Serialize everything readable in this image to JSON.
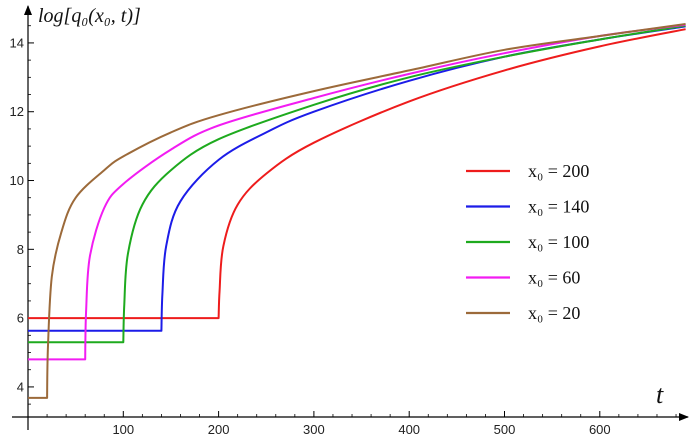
{
  "chart_data": {
    "type": "line",
    "ylabel": "log[q₀(x₀, t)]",
    "xlabel": "t",
    "xlim": [
      0,
      690
    ],
    "ylim": [
      3.3,
      14.6
    ],
    "x_ticks": [
      100,
      200,
      300,
      400,
      500,
      600
    ],
    "y_ticks": [
      4,
      6,
      8,
      10,
      12,
      14
    ],
    "grid": false,
    "legend_position": "right",
    "series": [
      {
        "name": "x₀ = 200",
        "x0": 200,
        "color": "#ee1c1c",
        "points": [
          [
            0,
            6.0
          ],
          [
            200,
            6.0
          ],
          [
            201,
            6.8
          ],
          [
            205,
            8.1
          ],
          [
            220,
            9.3
          ],
          [
            250,
            10.2
          ],
          [
            300,
            11.1
          ],
          [
            400,
            12.3
          ],
          [
            500,
            13.2
          ],
          [
            600,
            13.9
          ],
          [
            690,
            14.4
          ]
        ]
      },
      {
        "name": "x₀ = 140",
        "x0": 140,
        "color": "#1c1ce8",
        "points": [
          [
            0,
            5.63
          ],
          [
            140,
            5.63
          ],
          [
            141,
            6.7
          ],
          [
            145,
            8.1
          ],
          [
            160,
            9.4
          ],
          [
            200,
            10.6
          ],
          [
            250,
            11.4
          ],
          [
            300,
            12.0
          ],
          [
            400,
            12.9
          ],
          [
            500,
            13.6
          ],
          [
            600,
            14.1
          ],
          [
            690,
            14.48
          ]
        ]
      },
      {
        "name": "x₀ = 100",
        "x0": 100,
        "color": "#1eaa1e",
        "points": [
          [
            0,
            5.3
          ],
          [
            100,
            5.3
          ],
          [
            101,
            6.4
          ],
          [
            105,
            7.9
          ],
          [
            120,
            9.3
          ],
          [
            150,
            10.3
          ],
          [
            200,
            11.2
          ],
          [
            300,
            12.2
          ],
          [
            400,
            13.0
          ],
          [
            500,
            13.6
          ],
          [
            600,
            14.1
          ],
          [
            690,
            14.5
          ]
        ]
      },
      {
        "name": "x₀ = 60",
        "x0": 60,
        "color": "#f21cf2",
        "points": [
          [
            0,
            4.8
          ],
          [
            60,
            4.8
          ],
          [
            61,
            6.2
          ],
          [
            65,
            7.8
          ],
          [
            80,
            9.2
          ],
          [
            100,
            9.9
          ],
          [
            150,
            10.9
          ],
          [
            200,
            11.6
          ],
          [
            300,
            12.4
          ],
          [
            400,
            13.1
          ],
          [
            500,
            13.7
          ],
          [
            600,
            14.2
          ],
          [
            690,
            14.53
          ]
        ]
      },
      {
        "name": "x₀ = 20",
        "x0": 20,
        "color": "#9c6a3a",
        "points": [
          [
            0,
            3.68
          ],
          [
            20,
            3.68
          ],
          [
            21,
            5.2
          ],
          [
            25,
            7.2
          ],
          [
            35,
            8.5
          ],
          [
            50,
            9.5
          ],
          [
            80,
            10.3
          ],
          [
            100,
            10.7
          ],
          [
            150,
            11.4
          ],
          [
            200,
            11.9
          ],
          [
            300,
            12.6
          ],
          [
            400,
            13.2
          ],
          [
            500,
            13.8
          ],
          [
            600,
            14.2
          ],
          [
            690,
            14.55
          ]
        ]
      }
    ]
  }
}
